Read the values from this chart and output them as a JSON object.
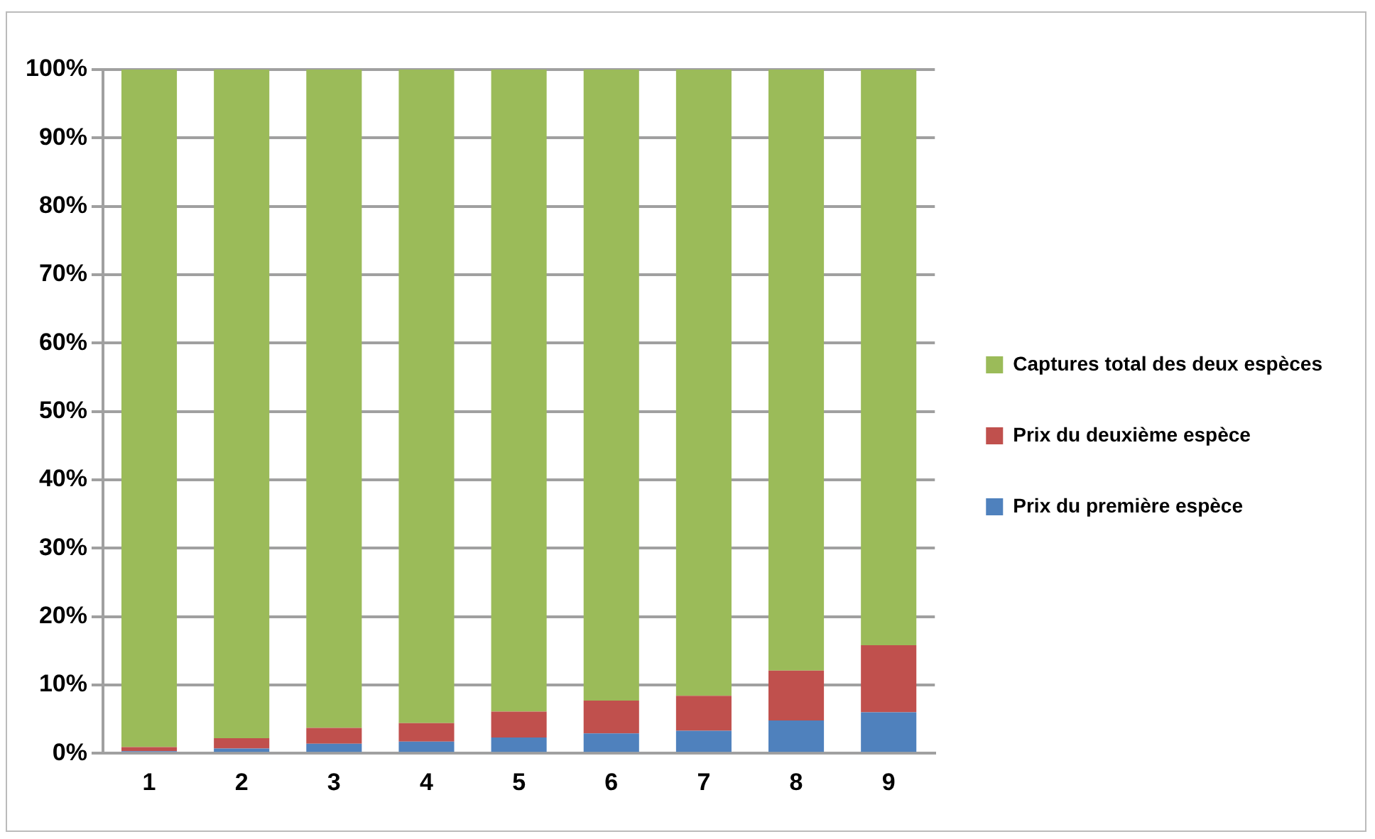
{
  "chart_data": {
    "type": "bar",
    "stacked": true,
    "categories": [
      "1",
      "2",
      "3",
      "4",
      "5",
      "6",
      "7",
      "8",
      "9"
    ],
    "series": [
      {
        "name": "Prix du première espèce",
        "color": "#4f81bd",
        "values": [
          0.3,
          0.7,
          1.4,
          1.7,
          2.3,
          2.9,
          3.3,
          4.8,
          6.0
        ]
      },
      {
        "name": "Prix du deuxième espèce",
        "color": "#c0504d",
        "values": [
          0.6,
          1.5,
          2.3,
          2.7,
          3.8,
          4.8,
          5.1,
          7.3,
          9.8
        ]
      },
      {
        "name": "Captures total des deux espèces",
        "color": "#9bbb59",
        "values": [
          99.1,
          97.8,
          96.3,
          95.6,
          93.9,
          92.3,
          91.6,
          87.9,
          84.2
        ]
      }
    ],
    "ylim": [
      0,
      100
    ],
    "yticks": [
      {
        "value": 0,
        "label": "0%"
      },
      {
        "value": 10,
        "label": "10%"
      },
      {
        "value": 20,
        "label": "20%"
      },
      {
        "value": 30,
        "label": "30%"
      },
      {
        "value": 40,
        "label": "40%"
      },
      {
        "value": 50,
        "label": "50%"
      },
      {
        "value": 60,
        "label": "60%"
      },
      {
        "value": 70,
        "label": "70%"
      },
      {
        "value": 80,
        "label": "80%"
      },
      {
        "value": 90,
        "label": "90%"
      },
      {
        "value": 100,
        "label": "100%"
      }
    ],
    "grid": "y",
    "legend": "right"
  }
}
